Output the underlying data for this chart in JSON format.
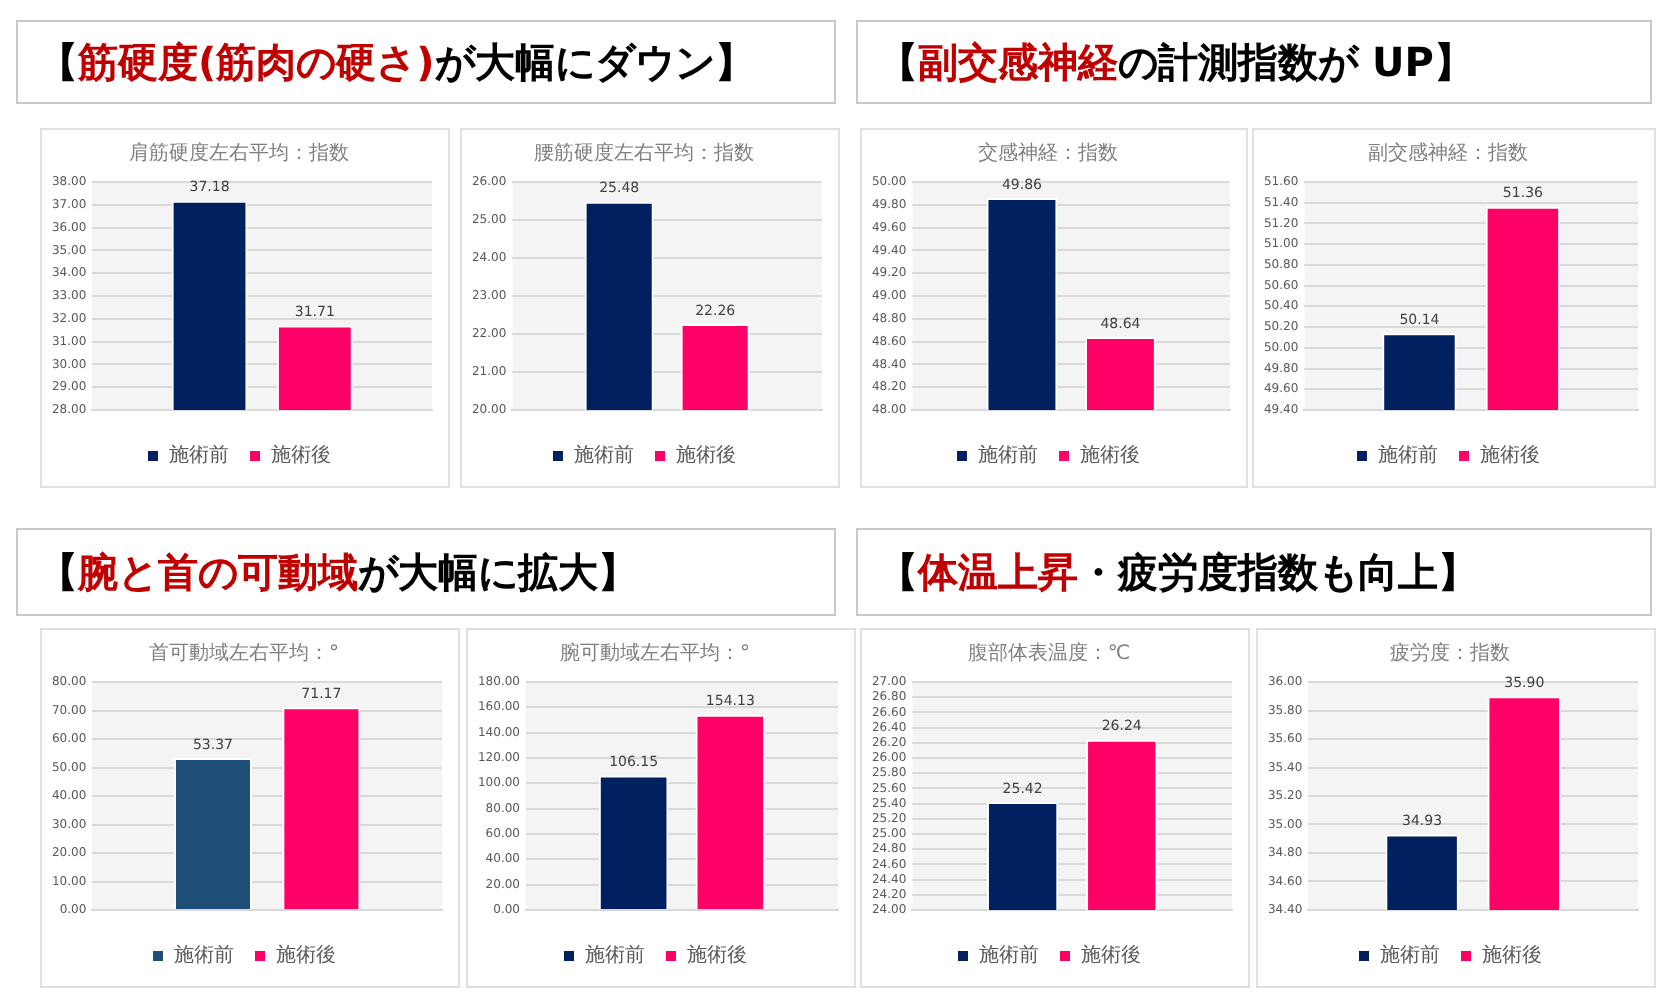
{
  "chart_data": [
    {
      "type": "other",
      "annotations": [
        "【",
        "筋硬度(筋肉の硬さ)",
        "が大幅にダウン】"
      ],
      "colors": [
        "#000000",
        "#c00000",
        "#000000"
      ]
    },
    {
      "type": "other",
      "annotations": [
        "【",
        "副交感神経",
        "の計測指数が UP】"
      ],
      "colors": [
        "#000000",
        "#c00000",
        "#000000"
      ]
    },
    {
      "type": "bar",
      "title": "肩筋硬度左右平均：指数",
      "categories": [
        null
      ],
      "series": [
        {
          "name": "施術前",
          "color": "#002060",
          "values": [
            37.18
          ],
          "value_labels": [
            "37.18"
          ]
        },
        {
          "name": "施術後",
          "color": "#ff0066",
          "values": [
            31.71
          ],
          "value_labels": [
            "31.71"
          ]
        }
      ],
      "ylim": [
        28,
        38
      ],
      "yticks": [
        {
          "value": 28,
          "label": "28.00"
        },
        {
          "value": 29,
          "label": "29.00"
        },
        {
          "value": 30,
          "label": "30.00"
        },
        {
          "value": 31,
          "label": "31.00"
        },
        {
          "value": 32,
          "label": "32.00"
        },
        {
          "value": 33,
          "label": "33.00"
        },
        {
          "value": 34,
          "label": "34.00"
        },
        {
          "value": 35,
          "label": "35.00"
        },
        {
          "value": 36,
          "label": "36.00"
        },
        {
          "value": 37,
          "label": "37.00"
        },
        {
          "value": 38,
          "label": "38.00"
        }
      ],
      "grid": "y",
      "legend": "bottom"
    },
    {
      "type": "bar",
      "title": "腰筋硬度左右平均：指数",
      "categories": [
        null
      ],
      "series": [
        {
          "name": "施術前",
          "color": "#002060",
          "values": [
            25.48
          ],
          "value_labels": [
            "25.48"
          ]
        },
        {
          "name": "施術後",
          "color": "#ff0066",
          "values": [
            22.26
          ],
          "value_labels": [
            "22.26"
          ]
        }
      ],
      "ylim": [
        20,
        26
      ],
      "yticks": [
        {
          "value": 20,
          "label": "20.00"
        },
        {
          "value": 21,
          "label": "21.00"
        },
        {
          "value": 22,
          "label": "22.00"
        },
        {
          "value": 23,
          "label": "23.00"
        },
        {
          "value": 24,
          "label": "24.00"
        },
        {
          "value": 25,
          "label": "25.00"
        },
        {
          "value": 26,
          "label": "26.00"
        }
      ],
      "grid": "y",
      "legend": "bottom"
    },
    {
      "type": "bar",
      "title": "交感神経：指数",
      "categories": [
        null
      ],
      "series": [
        {
          "name": "施術前",
          "color": "#002060",
          "values": [
            49.86
          ],
          "value_labels": [
            "49.86"
          ]
        },
        {
          "name": "施術後",
          "color": "#ff0066",
          "values": [
            48.64
          ],
          "value_labels": [
            "48.64"
          ]
        }
      ],
      "ylim": [
        48,
        50
      ],
      "yticks": [
        {
          "value": 48,
          "label": "48.00"
        },
        {
          "value": 48.2,
          "label": "48.20"
        },
        {
          "value": 48.4,
          "label": "48.40"
        },
        {
          "value": 48.6,
          "label": "48.60"
        },
        {
          "value": 48.8,
          "label": "48.80"
        },
        {
          "value": 49,
          "label": "49.00"
        },
        {
          "value": 49.2,
          "label": "49.20"
        },
        {
          "value": 49.4,
          "label": "49.40"
        },
        {
          "value": 49.6,
          "label": "49.60"
        },
        {
          "value": 49.8,
          "label": "49.80"
        },
        {
          "value": 50,
          "label": "50.00"
        }
      ],
      "grid": "y",
      "legend": "bottom"
    },
    {
      "type": "bar",
      "title": "副交感神経：指数",
      "categories": [
        null
      ],
      "series": [
        {
          "name": "施術前",
          "color": "#002060",
          "values": [
            50.14
          ],
          "value_labels": [
            "50.14"
          ]
        },
        {
          "name": "施術後",
          "color": "#ff0066",
          "values": [
            51.36
          ],
          "value_labels": [
            "51.36"
          ]
        }
      ],
      "ylim": [
        49.4,
        51.6
      ],
      "yticks": [
        {
          "value": 49.4,
          "label": "49.40"
        },
        {
          "value": 49.6,
          "label": "49.60"
        },
        {
          "value": 49.8,
          "label": "49.80"
        },
        {
          "value": 50,
          "label": "50.00"
        },
        {
          "value": 50.2,
          "label": "50.20"
        },
        {
          "value": 50.4,
          "label": "50.40"
        },
        {
          "value": 50.6,
          "label": "50.60"
        },
        {
          "value": 50.8,
          "label": "50.80"
        },
        {
          "value": 51,
          "label": "51.00"
        },
        {
          "value": 51.2,
          "label": "51.20"
        },
        {
          "value": 51.4,
          "label": "51.40"
        },
        {
          "value": 51.6,
          "label": "51.60"
        }
      ],
      "grid": "y",
      "legend": "bottom"
    },
    {
      "type": "other",
      "annotations": [
        "【",
        "腕と首の可動域",
        "が大幅に拡大】"
      ],
      "colors": [
        "#000000",
        "#c00000",
        "#000000"
      ]
    },
    {
      "type": "other",
      "annotations": [
        "【",
        "体温上昇",
        "・疲労度指数も向上】"
      ],
      "colors": [
        "#000000",
        "#c00000",
        "#000000"
      ]
    },
    {
      "type": "bar",
      "title": "首可動域左右平均：°",
      "categories": [
        null
      ],
      "series": [
        {
          "name": "施術前",
          "color": "#1f4e79",
          "values": [
            53.37
          ],
          "value_labels": [
            "53.37"
          ]
        },
        {
          "name": "施術後",
          "color": "#ff0066",
          "values": [
            71.17
          ],
          "value_labels": [
            "71.17"
          ]
        }
      ],
      "ylim": [
        0,
        80
      ],
      "yticks": [
        {
          "value": 0,
          "label": "0.00"
        },
        {
          "value": 10,
          "label": "10.00"
        },
        {
          "value": 20,
          "label": "20.00"
        },
        {
          "value": 30,
          "label": "30.00"
        },
        {
          "value": 40,
          "label": "40.00"
        },
        {
          "value": 50,
          "label": "50.00"
        },
        {
          "value": 60,
          "label": "60.00"
        },
        {
          "value": 70,
          "label": "70.00"
        },
        {
          "value": 80,
          "label": "80.00"
        }
      ],
      "grid": "y",
      "legend": "bottom"
    },
    {
      "type": "bar",
      "title": "腕可動域左右平均：°",
      "categories": [
        null
      ],
      "series": [
        {
          "name": "施術前",
          "color": "#002060",
          "values": [
            106.15
          ],
          "value_labels": [
            "106.15"
          ]
        },
        {
          "name": "施術後",
          "color": "#ff0066",
          "values": [
            154.13
          ],
          "value_labels": [
            "154.13"
          ]
        }
      ],
      "ylim": [
        0,
        180
      ],
      "yticks": [
        {
          "value": 0,
          "label": "0.00"
        },
        {
          "value": 20,
          "label": "20.00"
        },
        {
          "value": 40,
          "label": "40.00"
        },
        {
          "value": 60,
          "label": "60.00"
        },
        {
          "value": 80,
          "label": "80.00"
        },
        {
          "value": 100,
          "label": "100.00"
        },
        {
          "value": 120,
          "label": "120.00"
        },
        {
          "value": 140,
          "label": "140.00"
        },
        {
          "value": 160,
          "label": "160.00"
        },
        {
          "value": 180,
          "label": "180.00"
        }
      ],
      "grid": "y",
      "legend": "bottom"
    },
    {
      "type": "bar",
      "title": "腹部体表温度：℃",
      "categories": [
        null
      ],
      "series": [
        {
          "name": "施術前",
          "color": "#002060",
          "values": [
            25.42
          ],
          "value_labels": [
            "25.42"
          ]
        },
        {
          "name": "施術後",
          "color": "#ff0066",
          "values": [
            26.24
          ],
          "value_labels": [
            "26.24"
          ]
        }
      ],
      "ylim": [
        24,
        27
      ],
      "yticks": [
        {
          "value": 24,
          "label": "24.00"
        },
        {
          "value": 24.2,
          "label": "24.20"
        },
        {
          "value": 24.4,
          "label": "24.40"
        },
        {
          "value": 24.6,
          "label": "24.60"
        },
        {
          "value": 24.8,
          "label": "24.80"
        },
        {
          "value": 25,
          "label": "25.00"
        },
        {
          "value": 25.2,
          "label": "25.20"
        },
        {
          "value": 25.4,
          "label": "25.40"
        },
        {
          "value": 25.6,
          "label": "25.60"
        },
        {
          "value": 25.8,
          "label": "25.80"
        },
        {
          "value": 26,
          "label": "26.00"
        },
        {
          "value": 26.2,
          "label": "26.20"
        },
        {
          "value": 26.4,
          "label": "26.40"
        },
        {
          "value": 26.6,
          "label": "26.60"
        },
        {
          "value": 26.8,
          "label": "26.80"
        },
        {
          "value": 27,
          "label": "27.00"
        }
      ],
      "grid": "y",
      "legend": "bottom"
    },
    {
      "type": "bar",
      "title": "疲労度：指数",
      "categories": [
        null
      ],
      "series": [
        {
          "name": "施術前",
          "color": "#002060",
          "values": [
            34.93
          ],
          "value_labels": [
            "34.93"
          ]
        },
        {
          "name": "施術後",
          "color": "#ff0066",
          "values": [
            35.9
          ],
          "value_labels": [
            "35.90"
          ]
        }
      ],
      "ylim": [
        34.4,
        36
      ],
      "yticks": [
        {
          "value": 34.4,
          "label": "34.40"
        },
        {
          "value": 34.6,
          "label": "34.60"
        },
        {
          "value": 34.8,
          "label": "34.80"
        },
        {
          "value": 35,
          "label": "35.00"
        },
        {
          "value": 35.2,
          "label": "35.20"
        },
        {
          "value": 35.4,
          "label": "35.40"
        },
        {
          "value": 35.6,
          "label": "35.60"
        },
        {
          "value": 35.8,
          "label": "35.80"
        },
        {
          "value": 36,
          "label": "36.00"
        }
      ],
      "grid": "y",
      "legend": "bottom"
    }
  ]
}
